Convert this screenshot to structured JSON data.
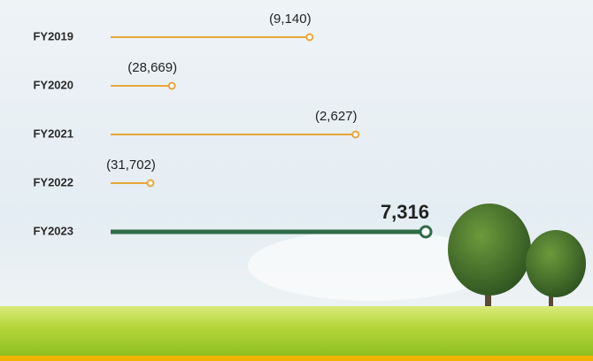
{
  "chart_data": {
    "type": "lollipop",
    "categories": [
      "FY2019",
      "FY2020",
      "FY2021",
      "FY2022",
      "FY2023"
    ],
    "values": [
      -9140,
      -28669,
      -2627,
      -31702,
      7316
    ],
    "value_labels": [
      "(9,140)",
      "(28,669)",
      "(2,627)",
      "(31,702)",
      "7,316"
    ],
    "colors": [
      "#e8a63a",
      "#e8a63a",
      "#e8a63a",
      "#e8a63a",
      "#2f6b47"
    ]
  }
}
